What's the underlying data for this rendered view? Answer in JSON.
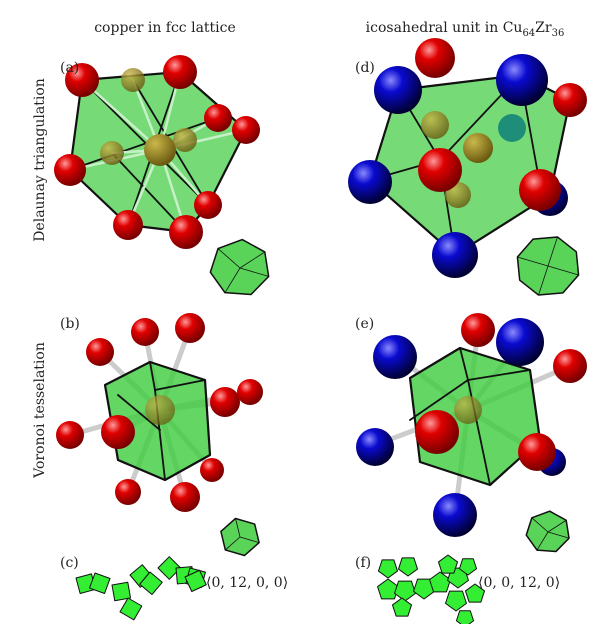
{
  "columns": [
    {
      "title": "copper in fcc lattice"
    },
    {
      "title_main": "icosahedral unit in Cu",
      "sub1": "64",
      "mid": "Zr",
      "sub2": "36"
    }
  ],
  "rows": [
    {
      "label": "Delaunay triangulation"
    },
    {
      "label": "Voronoi tesselation"
    }
  ],
  "panels": {
    "a": "(a)",
    "b": "(b)",
    "c": "(c)",
    "d": "(d)",
    "e": "(e)",
    "f": "(f)"
  },
  "voronoi_index": {
    "c": "⟨0, 12, 0, 0⟩",
    "f": "⟨0, 0, 12, 0⟩"
  },
  "colors": {
    "copper_atom": "#e00000",
    "zirconium_atom": "#0a0ad0",
    "polyhedron": "#3ccc3c",
    "net_face": "#33ee33",
    "bond": "#cccccc"
  }
}
